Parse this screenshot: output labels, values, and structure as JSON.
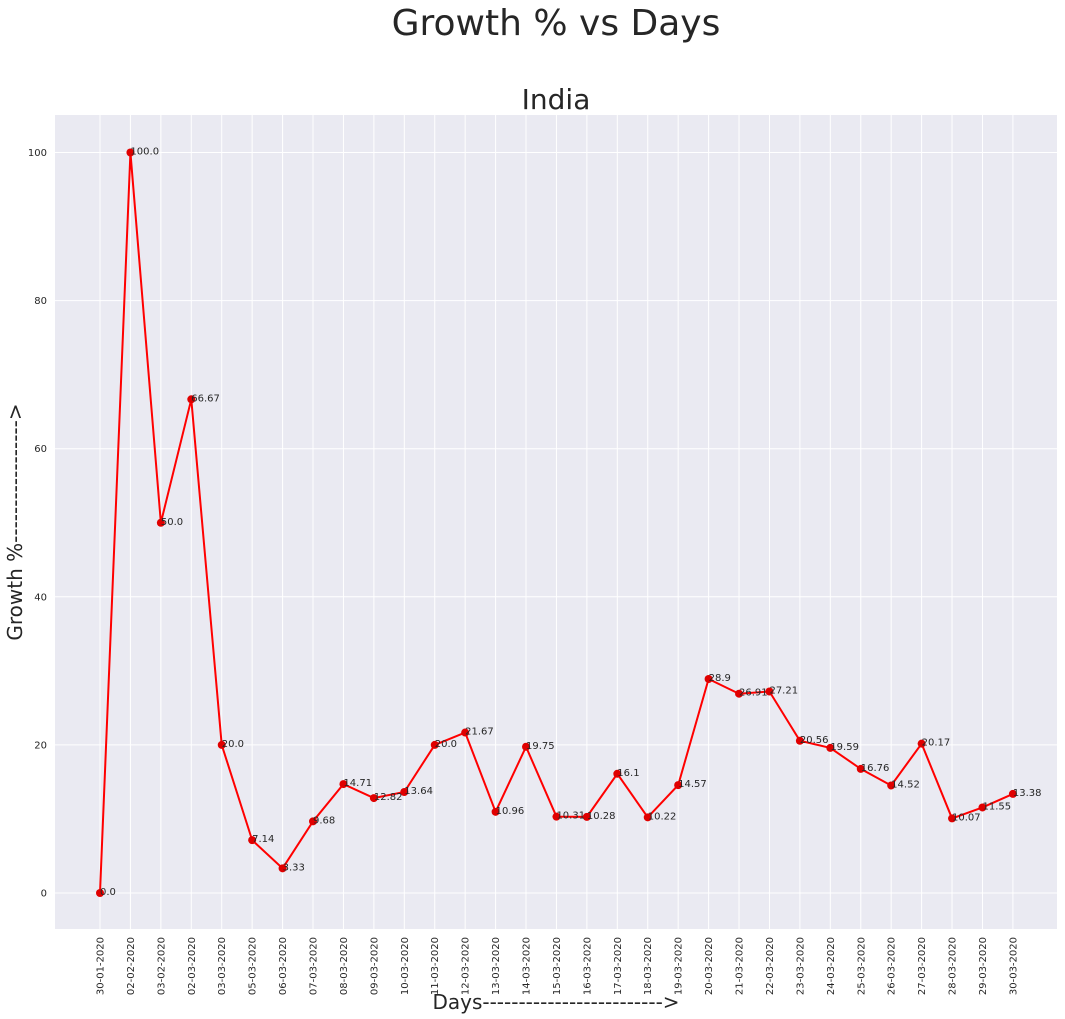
{
  "figure": {
    "title": "Growth % vs Days"
  },
  "chart_data": {
    "type": "line",
    "title": "India",
    "xlabel": "Days------------------------->",
    "ylabel": "Growth %----------------->",
    "ylim": [
      -5,
      105
    ],
    "yticks": [
      0,
      20,
      40,
      60,
      80,
      100
    ],
    "grid": true,
    "line_color": "#ff0000",
    "background_color": "#eaeaf2",
    "categories": [
      "30-01-2020",
      "02-02-2020",
      "03-02-2020",
      "02-03-2020",
      "03-03-2020",
      "05-03-2020",
      "06-03-2020",
      "07-03-2020",
      "08-03-2020",
      "09-03-2020",
      "10-03-2020",
      "11-03-2020",
      "12-03-2020",
      "13-03-2020",
      "14-03-2020",
      "15-03-2020",
      "16-03-2020",
      "17-03-2020",
      "18-03-2020",
      "19-03-2020",
      "20-03-2020",
      "21-03-2020",
      "22-03-2020",
      "23-03-2020",
      "24-03-2020",
      "25-03-2020",
      "26-03-2020",
      "27-03-2020",
      "28-03-2020",
      "29-03-2020",
      "30-03-2020"
    ],
    "values": [
      0.0,
      100.0,
      50.0,
      66.67,
      20.0,
      7.14,
      3.33,
      9.68,
      14.71,
      12.82,
      13.64,
      20.0,
      21.67,
      10.96,
      19.75,
      10.31,
      10.28,
      16.1,
      10.22,
      14.57,
      28.9,
      26.91,
      27.21,
      20.56,
      19.59,
      16.76,
      14.52,
      20.17,
      10.07,
      11.55,
      13.38
    ],
    "labels": [
      "0.0",
      "100.0",
      "50.0",
      "66.67",
      "20.0",
      "7.14",
      "3.33",
      "9.68",
      "14.71",
      "12.82",
      "13.64",
      "20.0",
      "21.67",
      "10.96",
      "19.75",
      "10.31",
      "10.28",
      "16.1",
      "10.22",
      "14.57",
      "28.9",
      "26.91",
      "27.21",
      "20.56",
      "19.59",
      "16.76",
      "14.52",
      "20.17",
      "10.07",
      "11.55",
      "13.38"
    ]
  }
}
